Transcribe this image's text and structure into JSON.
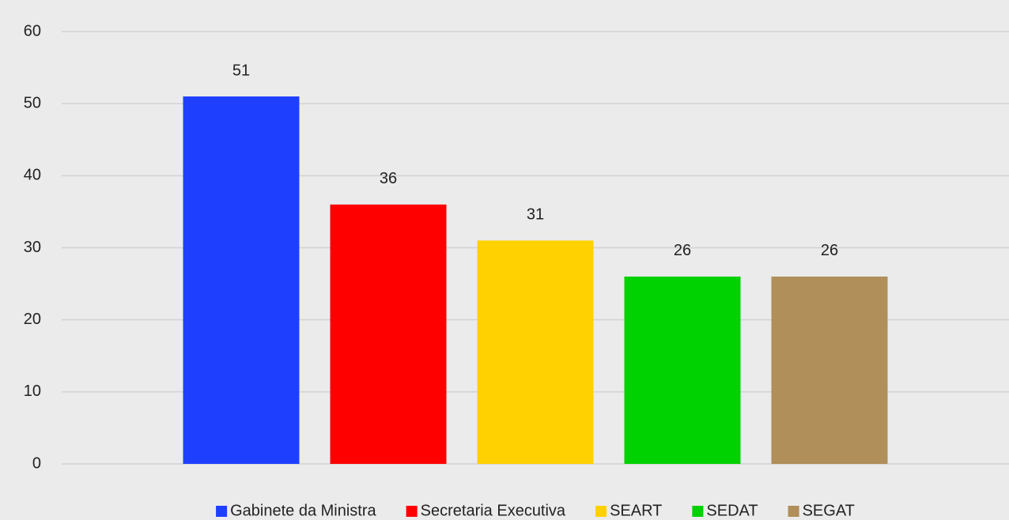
{
  "chart_data": {
    "type": "bar",
    "categories": [
      null
    ],
    "series": [
      {
        "name": "Gabinete da Ministra",
        "color": "#1f3ffe",
        "values": [
          51
        ]
      },
      {
        "name": "Secretaria Executiva",
        "color": "#fe0000",
        "values": [
          36
        ]
      },
      {
        "name": "SEART",
        "color": "#ffd100",
        "values": [
          31
        ]
      },
      {
        "name": "SEDAT",
        "color": "#00d100",
        "values": [
          26
        ]
      },
      {
        "name": "SEGAT",
        "color": "#b08f5a",
        "values": [
          26
        ]
      }
    ],
    "ylim": [
      0,
      60
    ],
    "yticks": [
      0,
      10,
      20,
      30,
      40,
      50,
      60
    ],
    "grid": true,
    "legend": "bottom"
  }
}
